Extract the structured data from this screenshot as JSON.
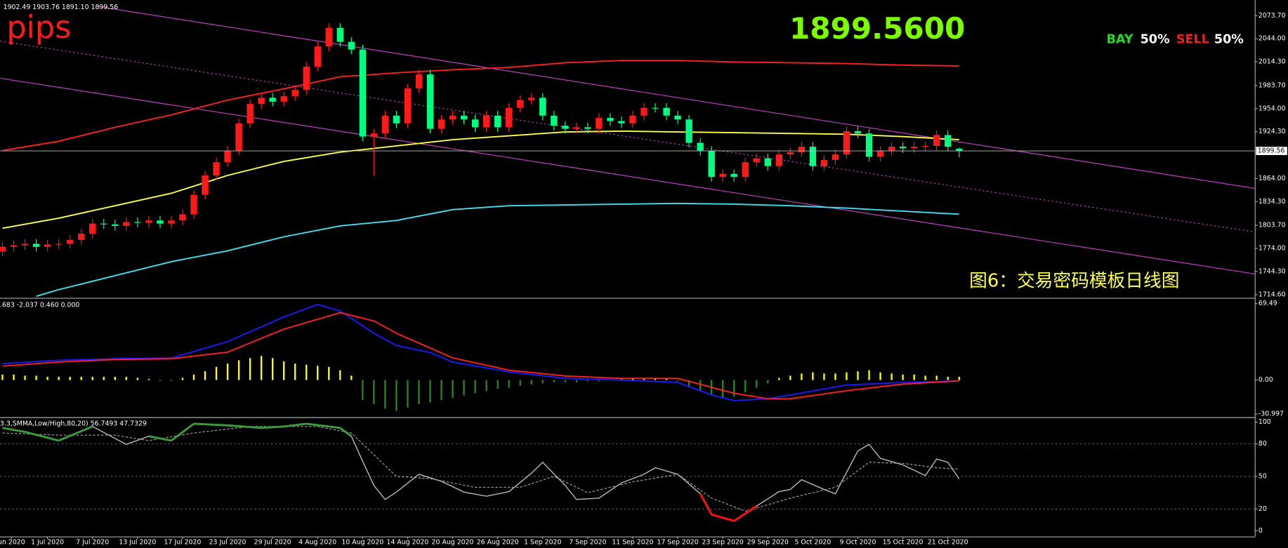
{
  "chart_data": [
    {
      "type": "candlestick",
      "ohlc_header": "1902.49 1903.76 1891.10 1899.56",
      "pips_label": "pips",
      "price_display": "1899.5600",
      "bay_label": "BAY",
      "bay_pct": "50%",
      "sell_label": "SELL",
      "sell_pct": "50%",
      "caption": "图6：交易密码模板日线图",
      "up_color": "#ff1a1a",
      "down_color": "#00ff80",
      "xlim": [
        -0.22,
        111.3
      ],
      "ylim": [
        1710.4,
        2093.8
      ],
      "yticks": [
        {
          "value": 2073.7,
          "label": "2073.70"
        },
        {
          "value": 2044,
          "label": "2044.00"
        },
        {
          "value": 2014.3,
          "label": "2014.30"
        },
        {
          "value": 1983.7,
          "label": "1983.70"
        },
        {
          "value": 1954,
          "label": "1954.00"
        },
        {
          "value": 1924.3,
          "label": "1924.30"
        },
        {
          "value": 1864,
          "label": "1864.00"
        },
        {
          "value": 1834.3,
          "label": "1834.30"
        },
        {
          "value": 1803.7,
          "label": "1803.70"
        },
        {
          "value": 1774,
          "label": "1774.00"
        },
        {
          "value": 1744.3,
          "label": "1744.30"
        },
        {
          "value": 1714.6,
          "label": "1714.60"
        }
      ],
      "price_line": 1899.56,
      "open": [
        1770,
        1776,
        1778,
        1780,
        1776,
        1779,
        1780,
        1785,
        1793,
        1806,
        1805,
        1803,
        1808,
        1807,
        1810,
        1806,
        1810,
        1818,
        1843,
        1868,
        1885,
        1900,
        1935,
        1960,
        1968,
        1963,
        1970,
        1978,
        2008,
        2034,
        2058,
        2040,
        2030,
        1918,
        1922,
        1945,
        1935,
        1980,
        1998,
        1928,
        1940,
        1945,
        1940,
        1930,
        1945,
        1930,
        1955,
        1965,
        1968,
        1945,
        1932,
        1928,
        1930,
        1928,
        1942,
        1938,
        1935,
        1945,
        1955,
        1955,
        1945,
        1940,
        1910,
        1900,
        1866,
        1870,
        1866,
        1885,
        1890,
        1880,
        1895,
        1898,
        1905,
        1880,
        1888,
        1895,
        1925,
        1922,
        1892,
        1900,
        1905,
        1903,
        1905,
        1906,
        1920,
        1902.49
      ],
      "high": [
        1782,
        1784,
        1786,
        1786,
        1785,
        1786,
        1791,
        1799,
        1812,
        1812,
        1811,
        1814,
        1814,
        1816,
        1816,
        1816,
        1824,
        1849,
        1874,
        1891,
        1906,
        1941,
        1966,
        1974,
        1974,
        1976,
        1984,
        2014,
        2040,
        2064,
        2064,
        2046,
        2036,
        1928,
        1951,
        1951,
        1986,
        2004,
        2004,
        1946,
        1951,
        1951,
        1946,
        1951,
        1951,
        1961,
        1971,
        1974,
        1974,
        1951,
        1938,
        1936,
        1936,
        1948,
        1948,
        1944,
        1951,
        1961,
        1961,
        1961,
        1951,
        1946,
        1916,
        1906,
        1876,
        1876,
        1891,
        1896,
        1896,
        1901,
        1904,
        1911,
        1911,
        1894,
        1901,
        1931,
        1931,
        1928,
        1906,
        1911,
        1911,
        1911,
        1912,
        1926,
        1926,
        1903.76
      ],
      "low": [
        1764,
        1770,
        1772,
        1770,
        1770,
        1773,
        1774,
        1779,
        1787,
        1799,
        1797,
        1797,
        1801,
        1801,
        1800,
        1800,
        1804,
        1812,
        1837,
        1862,
        1879,
        1894,
        1929,
        1954,
        1957,
        1957,
        1964,
        1972,
        2002,
        2028,
        2034,
        2024,
        1912,
        1868,
        1916,
        1929,
        1929,
        1974,
        1922,
        1922,
        1934,
        1934,
        1924,
        1924,
        1924,
        1924,
        1949,
        1959,
        1939,
        1926,
        1922,
        1922,
        1922,
        1922,
        1932,
        1929,
        1929,
        1939,
        1949,
        1939,
        1934,
        1904,
        1894,
        1860,
        1860,
        1860,
        1860,
        1879,
        1874,
        1874,
        1889,
        1892,
        1874,
        1874,
        1882,
        1889,
        1916,
        1886,
        1886,
        1894,
        1897,
        1897,
        1899,
        1900,
        1899,
        1891.1
      ],
      "close": [
        1776,
        1778,
        1780,
        1776,
        1779,
        1780,
        1785,
        1793,
        1806,
        1805,
        1803,
        1808,
        1807,
        1810,
        1806,
        1810,
        1818,
        1843,
        1868,
        1885,
        1900,
        1935,
        1960,
        1968,
        1963,
        1970,
        1978,
        2008,
        2034,
        2058,
        2040,
        2030,
        1918,
        1922,
        1945,
        1935,
        1980,
        1998,
        1928,
        1940,
        1945,
        1940,
        1930,
        1945,
        1930,
        1955,
        1965,
        1968,
        1945,
        1932,
        1928,
        1930,
        1928,
        1942,
        1938,
        1935,
        1945,
        1955,
        1955,
        1945,
        1940,
        1910,
        1900,
        1866,
        1870,
        1866,
        1885,
        1890,
        1880,
        1895,
        1898,
        1905,
        1880,
        1888,
        1895,
        1925,
        1922,
        1892,
        1900,
        1905,
        1903,
        1905,
        1906,
        1920,
        1905,
        1899.56
      ],
      "series": [
        {
          "color": "#ff2020",
          "x": [
            0,
            5,
            10,
            15,
            20,
            25,
            30,
            35,
            40,
            45,
            50,
            55,
            60,
            65,
            70,
            75,
            80,
            85
          ],
          "values": [
            1900,
            1912,
            1930,
            1946,
            1965,
            1979.5,
            1995,
            2000,
            2004,
            2007,
            2013,
            2016,
            2016,
            2014,
            2013,
            2012,
            2010,
            2009
          ]
        },
        {
          "color": "#ffff40",
          "x": [
            0,
            5,
            10,
            15,
            20,
            25,
            30,
            35,
            40,
            45,
            50,
            55,
            60,
            65,
            70,
            75,
            80,
            85
          ],
          "values": [
            1800,
            1813,
            1829,
            1845,
            1868,
            1886,
            1898,
            1906,
            1914,
            1919,
            1924,
            1925,
            1924,
            1923,
            1922,
            1921,
            1918,
            1914
          ]
        },
        {
          "color": "#40e0f0",
          "x": [
            3,
            5,
            10,
            15,
            20,
            25,
            30,
            35,
            40,
            45,
            50,
            55,
            60,
            65,
            70,
            75,
            80,
            85
          ],
          "values": [
            1712.5,
            1721,
            1739,
            1757,
            1771,
            1789,
            1803,
            1810,
            1824,
            1829,
            1830,
            1831,
            1832,
            1831,
            1829,
            1826,
            1822,
            1818
          ]
        }
      ]
    },
    {
      "type": "macd",
      "legend_text": ".683 -2.037 0.460 0.000",
      "xlim": [
        -0.22,
        111.3
      ],
      "ylim": [
        -33,
        74
      ],
      "yticks": [
        69.49,
        {
          "value": 0,
          "label": "0.00"
        },
        -30.997
      ],
      "positive_color": "#ffff00",
      "negative_color": "#228b22",
      "histogram": [
        5,
        5,
        4,
        4,
        3,
        3,
        3,
        3,
        3,
        3,
        3,
        3,
        2,
        1,
        -1,
        -1,
        2,
        5,
        8,
        12,
        15,
        18,
        20,
        22,
        20,
        17,
        15,
        14,
        13,
        12,
        9,
        4,
        -18,
        -22,
        -26,
        -28,
        -25,
        -22,
        -20,
        -18,
        -16,
        -14,
        -12,
        -10,
        -8,
        -7,
        -5,
        -4,
        -3,
        -2,
        -2,
        -2,
        -1,
        -1,
        0.5,
        1,
        1.5,
        2,
        1.5,
        1,
        -1,
        -6,
        -10,
        -13,
        -17,
        -15,
        -11,
        -7,
        -3,
        2,
        4,
        6,
        7,
        6,
        6,
        7,
        8,
        9,
        7,
        6,
        5,
        5,
        4,
        4,
        3,
        3
      ],
      "series": [
        {
          "color": "#1a1aff",
          "x": [
            0,
            5,
            10,
            15,
            20,
            25,
            28,
            30,
            33,
            35,
            38,
            40,
            45,
            50,
            55,
            60,
            63,
            65,
            68,
            70,
            75,
            80,
            85
          ],
          "values": [
            15,
            18,
            19.4,
            20,
            35,
            57.5,
            68.8,
            62.8,
            42.6,
            31.4,
            25,
            16.4,
            7.5,
            1.5,
            0,
            -2.2,
            -13.5,
            -18.7,
            -17,
            -13.5,
            -4.5,
            -2.2,
            -0.7
          ]
        },
        {
          "color": "#ff2020",
          "x": [
            0,
            5,
            10,
            15,
            20,
            25,
            30,
            33,
            35,
            40,
            45,
            50,
            55,
            60,
            65,
            68,
            70,
            75,
            80,
            85
          ],
          "values": [
            12.7,
            16.4,
            18.7,
            19.4,
            25.4,
            46.3,
            61.3,
            53.8,
            42.6,
            20.2,
            9,
            3.7,
            1.5,
            1.5,
            -12,
            -17,
            -17,
            -9.7,
            -3.7,
            -0.7
          ]
        }
      ]
    },
    {
      "type": "stochastic",
      "legend_text": "3.3,SMMA,Low/High,80,20) 56.7493 47.7329",
      "xlim": [
        -0.22,
        111.3
      ],
      "ylim": [
        -5.3,
        103.8
      ],
      "yticks": [
        100,
        80,
        50,
        20,
        0
      ],
      "levels": [
        80,
        50,
        20
      ],
      "overbought": 80,
      "oversold": 20,
      "overbought_color": "#3c9a3c",
      "oversold_color": "#ff1010",
      "xticks": [
        {
          "value": 0.8,
          "label": "un 2020"
        },
        {
          "value": 4,
          "label": "1 Jul 2020"
        },
        {
          "value": 8,
          "label": "7 Jul 2020"
        },
        {
          "value": 12,
          "label": "13 Jul 2020"
        },
        {
          "value": 16,
          "label": "17 Jul 2020"
        },
        {
          "value": 20,
          "label": "23 Jul 2020"
        },
        {
          "value": 24,
          "label": "29 Jul 2020"
        },
        {
          "value": 28,
          "label": "4 Aug 2020"
        },
        {
          "value": 32,
          "label": "10 Aug 2020"
        },
        {
          "value": 36,
          "label": "14 Aug 2020"
        },
        {
          "value": 40,
          "label": "20 Aug 2020"
        },
        {
          "value": 44,
          "label": "26 Aug 2020"
        },
        {
          "value": 48,
          "label": "1 Sep 2020"
        },
        {
          "value": 52,
          "label": "7 Sep 2020"
        },
        {
          "value": 56,
          "label": "11 Sep 2020"
        },
        {
          "value": 60,
          "label": "17 Sep 2020"
        },
        {
          "value": 64,
          "label": "23 Sep 2020"
        },
        {
          "value": 68,
          "label": "29 Sep 2020"
        },
        {
          "value": 72,
          "label": "5 Oct 2020"
        },
        {
          "value": 76,
          "label": "9 Oct 2020"
        },
        {
          "value": 80,
          "label": "15 Oct 2020"
        },
        {
          "value": 84,
          "label": "21 Oct 2020"
        }
      ],
      "series": [
        {
          "color": "#b8b8b8",
          "dash": false,
          "x": [
            0,
            2,
            5,
            8,
            11,
            13,
            15,
            17,
            20,
            23,
            25,
            27,
            30,
            31,
            32,
            33,
            34,
            35,
            37,
            39,
            41,
            43,
            45,
            47,
            48,
            50,
            51,
            53,
            55,
            57,
            58,
            60,
            62,
            63,
            65,
            67,
            69,
            70,
            71,
            73,
            74,
            76,
            77,
            78,
            80,
            82,
            83,
            84,
            85
          ],
          "values": [
            94.7,
            91,
            83,
            96,
            79.5,
            87,
            83,
            98.5,
            97,
            94.7,
            96,
            98.5,
            94.7,
            87,
            64,
            41.7,
            28.8,
            35.6,
            52,
            45.5,
            35.6,
            31.8,
            36,
            53,
            63,
            41.7,
            28.8,
            30,
            44,
            52,
            58,
            52,
            34,
            15,
            9,
            22.7,
            36,
            38,
            47,
            38,
            34,
            73.5,
            79.5,
            66.7,
            60.6,
            50.8,
            66,
            63,
            47.7329
          ]
        },
        {
          "color": "#a0a0a0",
          "dash": true,
          "x": [
            0,
            5,
            10,
            13,
            17,
            22,
            28,
            31,
            33,
            35,
            38,
            42,
            46,
            49,
            52,
            56,
            60,
            63,
            66,
            70,
            74,
            77,
            80,
            83,
            85
          ],
          "values": [
            90,
            88,
            88,
            83,
            90,
            96,
            96,
            90,
            70,
            50,
            48,
            40,
            40,
            50,
            35,
            45,
            52,
            30,
            18,
            30,
            40,
            63,
            62,
            58,
            56.7493
          ]
        }
      ]
    }
  ]
}
